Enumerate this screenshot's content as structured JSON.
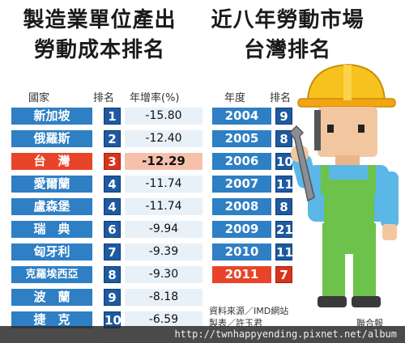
{
  "left_title": {
    "line1": "製造業單位產出",
    "line2": "勞動成本排名"
  },
  "right_title": {
    "line1": "近八年勞動市場",
    "line2": "台灣排名"
  },
  "left_headers": {
    "country": "國家",
    "rank": "排名",
    "growth": "年增率(%)"
  },
  "right_headers": {
    "year": "年度",
    "rank": "排名"
  },
  "countries": [
    {
      "name": "新加坡",
      "rank": "1",
      "growth": "-15.80"
    },
    {
      "name": "俄羅斯",
      "rank": "2",
      "growth": "-12.40"
    },
    {
      "name": "台　灣",
      "rank": "3",
      "growth": "-12.29"
    },
    {
      "name": "愛爾蘭",
      "rank": "4",
      "growth": "-11.74"
    },
    {
      "name": "盧森堡",
      "rank": "4",
      "growth": "-11.74"
    },
    {
      "name": "瑞　典",
      "rank": "6",
      "growth": "-9.94"
    },
    {
      "name": "匈牙利",
      "rank": "7",
      "growth": "-9.39"
    },
    {
      "name": "克羅埃西亞",
      "rank": "8",
      "growth": "-9.30"
    },
    {
      "name": "波　蘭",
      "rank": "9",
      "growth": "-8.18"
    },
    {
      "name": "捷　克",
      "rank": "10",
      "growth": "-6.59"
    }
  ],
  "years": [
    {
      "year": "2004",
      "rank": "9"
    },
    {
      "year": "2005",
      "rank": "8"
    },
    {
      "year": "2006",
      "rank": "10"
    },
    {
      "year": "2007",
      "rank": "11"
    },
    {
      "year": "2008",
      "rank": "8"
    },
    {
      "year": "2009",
      "rank": "21"
    },
    {
      "year": "2010",
      "rank": "11"
    },
    {
      "year": "2011",
      "rank": "7"
    }
  ],
  "source": {
    "line1": "資料來源／IMD網站",
    "line2": "製表／許玉君",
    "brand": "聯合報"
  },
  "watermark": "http://twnhappyending.pixnet.net/album",
  "colors": {
    "blue": "#2f7fc4",
    "dark_blue": "#1e5aa0",
    "red": "#e8442a",
    "pink": "#f6c1ac",
    "light": "#e9f1f8"
  }
}
